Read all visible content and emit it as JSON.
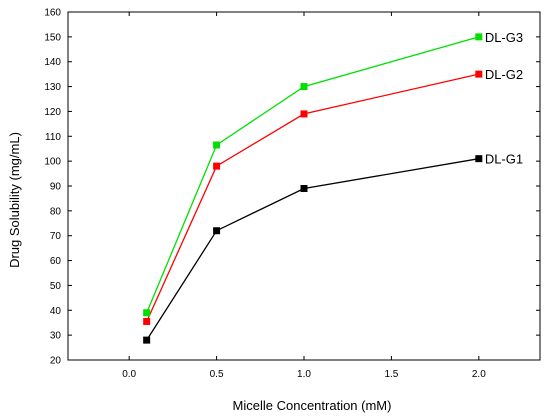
{
  "chart_data": {
    "type": "line",
    "xlabel": "Micelle Concentration (mM)",
    "ylabel": "Drug Solubility (mg/mL)",
    "xlim": [
      -0.35,
      2.35
    ],
    "ylim": [
      20,
      160
    ],
    "xticks": [
      "0.0",
      "0.5",
      "1.0",
      "1.5",
      "2.0"
    ],
    "xtick_values": [
      0.0,
      0.5,
      1.0,
      1.5,
      2.0
    ],
    "yticks": [
      "20",
      "30",
      "40",
      "50",
      "60",
      "70",
      "80",
      "90",
      "100",
      "110",
      "120",
      "130",
      "140",
      "150",
      "160"
    ],
    "ytick_values": [
      20,
      30,
      40,
      50,
      60,
      70,
      80,
      90,
      100,
      110,
      120,
      130,
      140,
      150,
      160
    ],
    "grid": false,
    "legend": "inline labels at line ends",
    "x": [
      0.1,
      0.5,
      1.0,
      2.0
    ],
    "series": [
      {
        "name": "DL-G1",
        "color": "#000000",
        "values": [
          28,
          72,
          89,
          101
        ]
      },
      {
        "name": "DL-G2",
        "color": "#ff0000",
        "values": [
          35.5,
          98,
          119,
          135
        ]
      },
      {
        "name": "DL-G3",
        "color": "#00e000",
        "values": [
          39,
          106.5,
          130,
          150
        ]
      }
    ]
  }
}
